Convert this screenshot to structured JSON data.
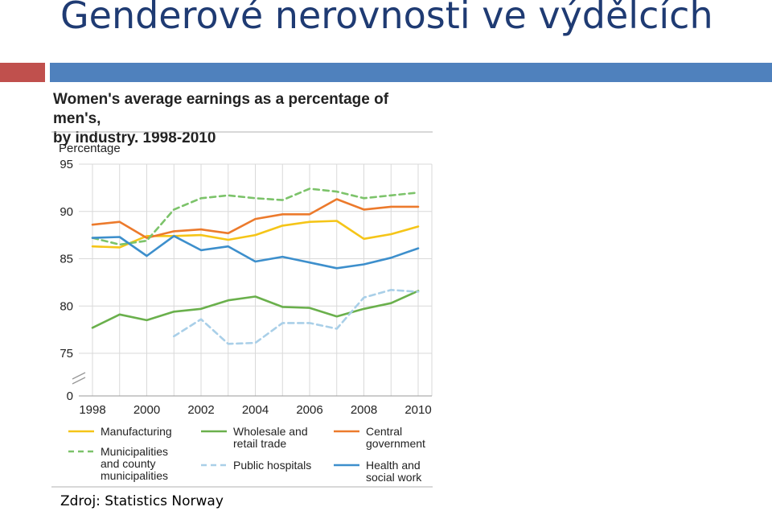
{
  "slide": {
    "title": "Genderové nerovnosti ve výdělcích",
    "source": "Zdroj: Statistics Norway"
  },
  "colors": {
    "accent_red": "#c0504d",
    "accent_blue": "#4f81bd",
    "title_text": "#1f3b73"
  },
  "chart_data": {
    "type": "line",
    "title": "Women's average earnings as a percentage of men's, by industry. 1998-2010",
    "title_lines": [
      "Women's average earnings as a percentage of men's,",
      "by industry. 1998-2010"
    ],
    "ylabel": "Percentage",
    "xlabel": "",
    "x": [
      1998,
      1999,
      2000,
      2001,
      2002,
      2003,
      2004,
      2005,
      2006,
      2007,
      2008,
      2009,
      2010
    ],
    "x_ticks": [
      "1998",
      "2000",
      "2002",
      "2004",
      "2006",
      "2008",
      "2010"
    ],
    "y_ticks": [
      "95",
      "90",
      "85",
      "80",
      "75",
      "0"
    ],
    "ylim": [
      75,
      95
    ],
    "y_axis_break": true,
    "grid": true,
    "legend_position": "bottom",
    "series": [
      {
        "name": "Manufacturing",
        "color": "#f5c518",
        "dash": "solid",
        "values": [
          86.3,
          86.2,
          87.4,
          87.4,
          87.5,
          87.0,
          87.5,
          88.5,
          88.9,
          89.0,
          87.1,
          87.6,
          88.4
        ]
      },
      {
        "name": "Wholesale and retail trade",
        "color": "#6ab04c",
        "dash": "solid",
        "values": [
          77.7,
          79.1,
          78.5,
          79.4,
          79.7,
          80.6,
          81.0,
          79.9,
          79.8,
          78.9,
          79.7,
          80.3,
          81.6
        ]
      },
      {
        "name": "Central government",
        "color": "#ec7a2c",
        "dash": "solid",
        "values": [
          88.6,
          88.9,
          87.2,
          87.9,
          88.1,
          87.7,
          89.2,
          89.7,
          89.7,
          91.3,
          90.2,
          90.5,
          90.5
        ]
      },
      {
        "name": "Municipalities and county municipalities",
        "color": "#7cc36a",
        "dash": "dashed",
        "values": [
          87.2,
          86.5,
          86.9,
          90.2,
          91.4,
          91.7,
          91.4,
          91.2,
          92.4,
          92.1,
          91.4,
          91.7,
          92.0
        ]
      },
      {
        "name": "Public hospitals",
        "color": "#a9cfe8",
        "dash": "dashed",
        "values": [
          null,
          null,
          null,
          76.8,
          78.6,
          76.0,
          76.1,
          78.2,
          78.2,
          77.6,
          80.9,
          81.7,
          81.5
        ]
      },
      {
        "name": "Health and social work",
        "color": "#3d8fcc",
        "dash": "solid",
        "values": [
          87.2,
          87.3,
          85.3,
          87.4,
          85.9,
          86.3,
          84.7,
          85.2,
          84.6,
          84.0,
          84.4,
          85.1,
          86.1
        ]
      }
    ],
    "legend_items": [
      {
        "series": 0,
        "lines": [
          "Manufacturing"
        ]
      },
      {
        "series": 1,
        "lines": [
          "Wholesale and",
          "retail trade"
        ]
      },
      {
        "series": 2,
        "lines": [
          "Central",
          "government"
        ]
      },
      {
        "series": 3,
        "lines": [
          "Municipalities",
          "and county",
          "municipalities"
        ]
      },
      {
        "series": 4,
        "lines": [
          "Public hospitals"
        ]
      },
      {
        "series": 5,
        "lines": [
          "Health and",
          "social work"
        ]
      }
    ]
  }
}
